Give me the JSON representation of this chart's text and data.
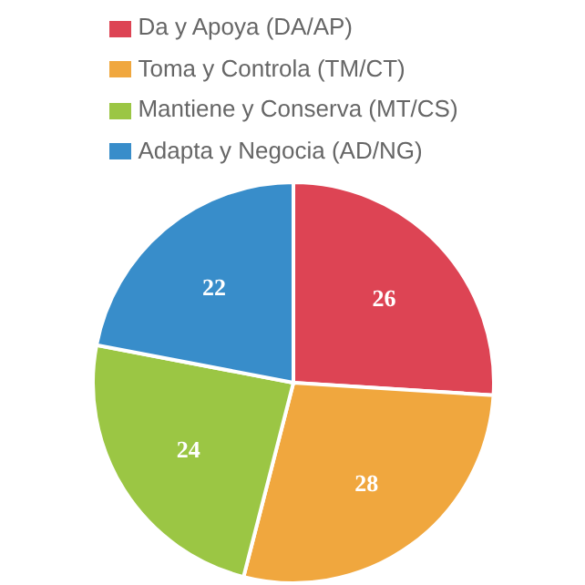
{
  "chart_data": {
    "type": "pie",
    "categories": [
      "Da y Apoya (DA/AP)",
      "Toma y Controla (TM/CT)",
      "Mantiene y Conserva (MT/CS)",
      "Adapta y Negocia (AD/NG)"
    ],
    "values": [
      26,
      28,
      24,
      22
    ],
    "colors": [
      "#dd4454",
      "#f0a73e",
      "#9bc644",
      "#388dca"
    ],
    "data_labels": true,
    "legend": "top"
  }
}
